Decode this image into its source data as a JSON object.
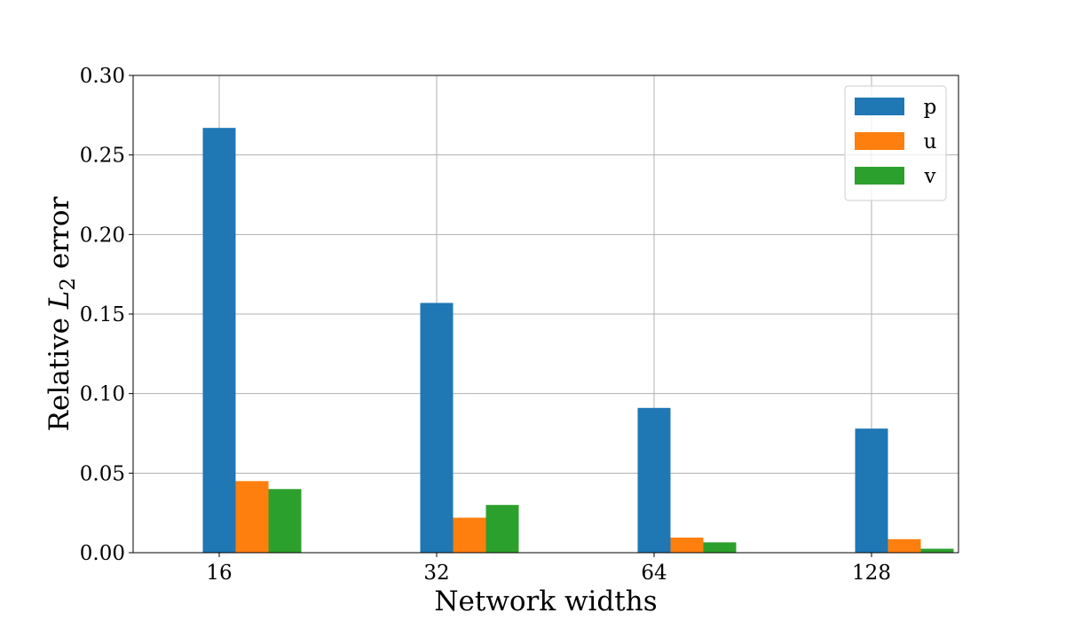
{
  "chart_data": {
    "type": "bar",
    "categories": [
      "16",
      "32",
      "64",
      "128"
    ],
    "series": [
      {
        "name": "p",
        "color": "#1f77b4",
        "values": [
          0.267,
          0.157,
          0.091,
          0.078
        ]
      },
      {
        "name": "u",
        "color": "#ff7f0e",
        "values": [
          0.045,
          0.022,
          0.0095,
          0.0085
        ]
      },
      {
        "name": "v",
        "color": "#2ca02c",
        "values": [
          0.04,
          0.03,
          0.0065,
          0.0025
        ]
      }
    ],
    "xlabel": "Network widths",
    "ylabel": {
      "prefix": "Relative ",
      "symbol": "L",
      "subscript": "2",
      "suffix": " error"
    },
    "ylim": [
      0,
      0.3
    ],
    "yticks": [
      "0.00",
      "0.05",
      "0.10",
      "0.15",
      "0.20",
      "0.25",
      "0.30"
    ],
    "grid": true,
    "legend_position": "top-right"
  }
}
